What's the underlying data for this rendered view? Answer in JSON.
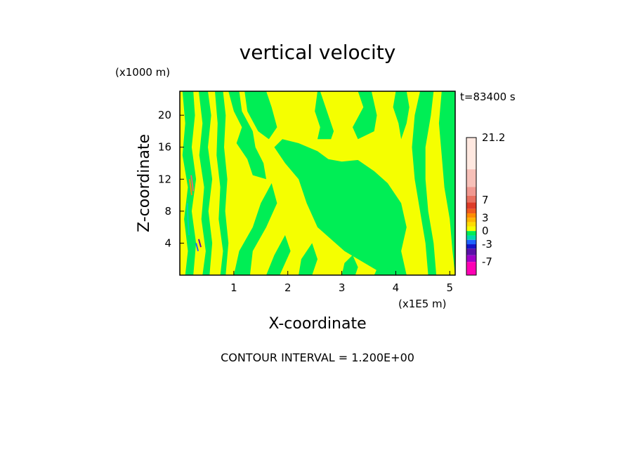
{
  "chart_data": {
    "type": "heatmap",
    "title": "vertical velocity",
    "xlabel": "X-coordinate",
    "ylabel": "Z-coordinate",
    "x_unit": "(x1E5 m)",
    "y_unit": "(x1000 m)",
    "time_label": "t=83400 s",
    "footer": "CONTOUR INTERVAL = 1.200E+00",
    "xlim": [
      0,
      5.1
    ],
    "ylim": [
      0,
      23
    ],
    "x_ticks": [
      {
        "value": 1,
        "label": "1"
      },
      {
        "value": 2,
        "label": "2"
      },
      {
        "value": 3,
        "label": "3"
      },
      {
        "value": 4,
        "label": "4"
      },
      {
        "value": 5,
        "label": "5"
      }
    ],
    "y_ticks": [
      {
        "value": 4,
        "label": "4"
      },
      {
        "value": 8,
        "label": "8"
      },
      {
        "value": 12,
        "label": "12"
      },
      {
        "value": 16,
        "label": "16"
      },
      {
        "value": 20,
        "label": "20"
      }
    ],
    "colorbar": {
      "range": [
        -10,
        21.2
      ],
      "levels": [
        {
          "from": 14.0,
          "to": 21.2,
          "color": "#ffe8e0"
        },
        {
          "from": 10.0,
          "to": 14.0,
          "color": "#f7c0b8"
        },
        {
          "from": 8.0,
          "to": 10.0,
          "color": "#f09890"
        },
        {
          "from": 6.5,
          "to": 8.0,
          "color": "#e87060"
        },
        {
          "from": 5.0,
          "to": 6.5,
          "color": "#dd3c28"
        },
        {
          "from": 4.0,
          "to": 5.0,
          "color": "#f05a1e"
        },
        {
          "from": 3.0,
          "to": 4.0,
          "color": "#ff8c00"
        },
        {
          "from": 2.0,
          "to": 3.0,
          "color": "#ffb400"
        },
        {
          "from": 1.0,
          "to": 2.0,
          "color": "#ffdc00"
        },
        {
          "from": 0.0,
          "to": 1.0,
          "color": "#f5ff00"
        },
        {
          "from": -1.0,
          "to": 0.0,
          "color": "#00ee55"
        },
        {
          "from": -2.0,
          "to": -1.0,
          "color": "#00d8b0"
        },
        {
          "from": -3.0,
          "to": -2.0,
          "color": "#1e64ff"
        },
        {
          "from": -4.0,
          "to": -3.0,
          "color": "#1414c8"
        },
        {
          "from": -5.5,
          "to": -4.0,
          "color": "#5a10a8"
        },
        {
          "from": -7.0,
          "to": -5.5,
          "color": "#a000c8"
        },
        {
          "from": -10.0,
          "to": -7.0,
          "color": "#ff00b4"
        }
      ],
      "labels": [
        {
          "value": 21.2,
          "label": "21.2"
        },
        {
          "value": 7,
          "label": "7"
        },
        {
          "value": 3,
          "label": "3"
        },
        {
          "value": 0,
          "label": "0"
        },
        {
          "value": -3,
          "label": "-3"
        },
        {
          "value": -7,
          "label": "-7"
        }
      ]
    },
    "field": {
      "background_color": "#f5ff00",
      "regions": [
        {
          "color": "#00ee55",
          "points": [
            [
              3.8,
              0
            ],
            [
              3.05,
              3.0
            ],
            [
              2.55,
              6.0
            ],
            [
              2.35,
              9.0
            ],
            [
              2.2,
              12.0
            ],
            [
              1.95,
              14.0
            ],
            [
              1.75,
              16.0
            ],
            [
              1.9,
              17.0
            ],
            [
              2.2,
              16.5
            ],
            [
              2.55,
              15.5
            ],
            [
              2.75,
              14.5
            ],
            [
              3.0,
              14.2
            ],
            [
              3.3,
              14.4
            ],
            [
              3.6,
              13.0
            ],
            [
              3.85,
              11.5
            ],
            [
              4.1,
              9.0
            ],
            [
              4.2,
              6.0
            ],
            [
              4.1,
              3.0
            ],
            [
              4.2,
              0
            ]
          ]
        },
        {
          "color": "#00ee55",
          "points": [
            [
              2.55,
              17.0
            ],
            [
              2.6,
              18.5
            ],
            [
              2.5,
              20.5
            ],
            [
              2.55,
              23
            ],
            [
              2.6,
              23
            ],
            [
              2.75,
              20.0
            ],
            [
              2.85,
              18.0
            ],
            [
              2.8,
              17.0
            ]
          ]
        },
        {
          "color": "#00ee55",
          "points": [
            [
              3.3,
              23
            ],
            [
              3.4,
              21.0
            ],
            [
              3.2,
              18.5
            ],
            [
              3.3,
              17.0
            ],
            [
              3.6,
              18.0
            ],
            [
              3.65,
              20.0
            ],
            [
              3.55,
              23
            ]
          ]
        },
        {
          "color": "#00ee55",
          "points": [
            [
              1.2,
              23
            ],
            [
              1.25,
              20.5
            ],
            [
              1.45,
              18.0
            ],
            [
              1.65,
              17.0
            ],
            [
              1.8,
              18.5
            ],
            [
              1.7,
              21.0
            ],
            [
              1.6,
              23
            ]
          ]
        },
        {
          "color": "#00ee55",
          "points": [
            [
              0.9,
              23
            ],
            [
              1.0,
              20.5
            ],
            [
              1.15,
              18.5
            ],
            [
              1.05,
              16.5
            ],
            [
              1.25,
              14.5
            ],
            [
              1.35,
              12.5
            ],
            [
              1.6,
              12.0
            ],
            [
              1.55,
              14.0
            ],
            [
              1.4,
              16.0
            ],
            [
              1.35,
              18.0
            ],
            [
              1.15,
              20.5
            ],
            [
              1.1,
              23
            ]
          ]
        },
        {
          "color": "#00ee55",
          "points": [
            [
              1.0,
              0
            ],
            [
              1.1,
              3.0
            ],
            [
              1.35,
              6.0
            ],
            [
              1.5,
              9.0
            ],
            [
              1.7,
              11.5
            ],
            [
              1.8,
              9.0
            ],
            [
              1.6,
              6.0
            ],
            [
              1.35,
              3.0
            ],
            [
              1.3,
              0
            ]
          ]
        },
        {
          "color": "#00ee55",
          "points": [
            [
              1.6,
              0
            ],
            [
              1.75,
              2.5
            ],
            [
              1.95,
              5.0
            ],
            [
              2.05,
              3.0
            ],
            [
              1.85,
              0
            ]
          ]
        },
        {
          "color": "#00ee55",
          "points": [
            [
              2.2,
              0
            ],
            [
              2.25,
              2.0
            ],
            [
              2.45,
              4.0
            ],
            [
              2.55,
              2.0
            ],
            [
              2.45,
              0
            ]
          ]
        },
        {
          "color": "#00ee55",
          "points": [
            [
              4.45,
              23
            ],
            [
              4.35,
              20.0
            ],
            [
              4.3,
              16.0
            ],
            [
              4.35,
              12.0
            ],
            [
              4.45,
              8.0
            ],
            [
              4.55,
              4.0
            ],
            [
              4.6,
              0
            ],
            [
              4.75,
              0
            ],
            [
              4.7,
              4.0
            ],
            [
              4.6,
              8.0
            ],
            [
              4.55,
              12.0
            ],
            [
              4.55,
              16.0
            ],
            [
              4.65,
              20.0
            ],
            [
              4.7,
              23
            ]
          ]
        },
        {
          "color": "#00ee55",
          "points": [
            [
              4.85,
              23
            ],
            [
              4.8,
              19.0
            ],
            [
              4.85,
              15.0
            ],
            [
              4.9,
              11.0
            ],
            [
              5.0,
              7.0
            ],
            [
              5.05,
              3.0
            ],
            [
              5.1,
              0
            ],
            [
              5.1,
              23
            ]
          ]
        },
        {
          "color": "#00ee55",
          "points": [
            [
              4.0,
              23
            ],
            [
              3.95,
              21.0
            ],
            [
              4.05,
              19.0
            ],
            [
              4.1,
              17.0
            ],
            [
              4.2,
              19.0
            ],
            [
              4.25,
              21.0
            ],
            [
              4.2,
              23
            ]
          ]
        },
        {
          "color": "#00ee55",
          "points": [
            [
              0.05,
              23
            ],
            [
              0.1,
              19.0
            ],
            [
              0.05,
              15.0
            ],
            [
              0.15,
              11.0
            ],
            [
              0.08,
              7.0
            ],
            [
              0.15,
              3.0
            ],
            [
              0.1,
              0
            ],
            [
              0.25,
              0
            ],
            [
              0.3,
              4.0
            ],
            [
              0.22,
              8.0
            ],
            [
              0.3,
              12.0
            ],
            [
              0.22,
              16.0
            ],
            [
              0.28,
              20.0
            ],
            [
              0.25,
              23
            ]
          ]
        },
        {
          "color": "#00ee55",
          "points": [
            [
              0.35,
              23
            ],
            [
              0.42,
              19.0
            ],
            [
              0.36,
              15.0
            ],
            [
              0.45,
              11.0
            ],
            [
              0.4,
              7.0
            ],
            [
              0.48,
              3.0
            ],
            [
              0.42,
              0
            ],
            [
              0.55,
              0
            ],
            [
              0.6,
              4.0
            ],
            [
              0.53,
              8.0
            ],
            [
              0.6,
              12.0
            ],
            [
              0.52,
              16.0
            ],
            [
              0.58,
              20.0
            ],
            [
              0.52,
              23
            ]
          ]
        },
        {
          "color": "#00ee55",
          "points": [
            [
              0.65,
              23
            ],
            [
              0.7,
              19.0
            ],
            [
              0.68,
              15.0
            ],
            [
              0.75,
              11.0
            ],
            [
              0.72,
              7.0
            ],
            [
              0.8,
              3.0
            ],
            [
              0.75,
              0
            ],
            [
              0.85,
              0
            ],
            [
              0.9,
              4.0
            ],
            [
              0.84,
              8.0
            ],
            [
              0.88,
              12.0
            ],
            [
              0.82,
              16.0
            ],
            [
              0.85,
              20.0
            ],
            [
              0.8,
              23
            ]
          ]
        },
        {
          "color": "#00ee55",
          "points": [
            [
              3.0,
              0
            ],
            [
              3.05,
              1.5
            ],
            [
              3.2,
              2.5
            ],
            [
              3.3,
              1.0
            ],
            [
              3.25,
              0
            ]
          ]
        },
        {
          "color": "#00ee55",
          "points": [
            [
              3.6,
              0
            ],
            [
              3.7,
              1.5
            ],
            [
              3.85,
              1.0
            ],
            [
              3.8,
              0
            ]
          ]
        }
      ],
      "lines": [
        {
          "color": "#ff8c00",
          "points": [
            [
              0.18,
              12.0
            ],
            [
              0.2,
              11.0
            ],
            [
              0.22,
              10.0
            ]
          ]
        },
        {
          "color": "#e87060",
          "points": [
            [
              0.21,
              12.5
            ],
            [
              0.23,
              11.5
            ],
            [
              0.25,
              10.5
            ]
          ]
        },
        {
          "color": "#1e64ff",
          "points": [
            [
              0.3,
              4.0
            ],
            [
              0.32,
              3.5
            ],
            [
              0.34,
              3.0
            ]
          ]
        },
        {
          "color": "#5a10a8",
          "points": [
            [
              0.35,
              4.5
            ],
            [
              0.37,
              4.0
            ],
            [
              0.39,
              3.5
            ]
          ]
        },
        {
          "color": "#00d8b0",
          "points": [
            [
              0.14,
              9.0
            ],
            [
              0.15,
              7.0
            ],
            [
              0.17,
              5.0
            ]
          ]
        }
      ]
    }
  }
}
